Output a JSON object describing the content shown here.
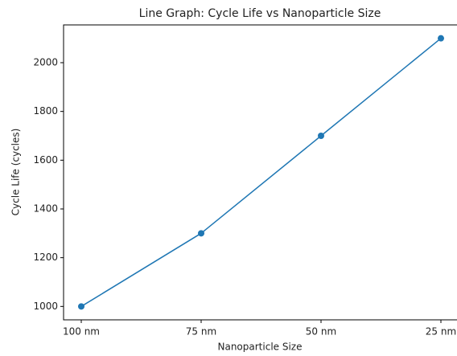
{
  "chart_data": {
    "type": "line",
    "title": "Line Graph: Cycle Life vs Nanoparticle Size",
    "x_label": "Nanoparticle Size",
    "y_label": "Cycle Life (cycles)",
    "categories": [
      "100 nm",
      "75 nm",
      "50 nm",
      "25 nm"
    ],
    "series": [
      {
        "name": "Cycle Life",
        "color": "#1f77b4",
        "values": [
          1000,
          1300,
          1700,
          2100
        ]
      }
    ],
    "ylim": [
      945,
      2155
    ],
    "yticks": [
      1000,
      1200,
      1400,
      1600,
      1800,
      2000
    ],
    "grid": false
  }
}
